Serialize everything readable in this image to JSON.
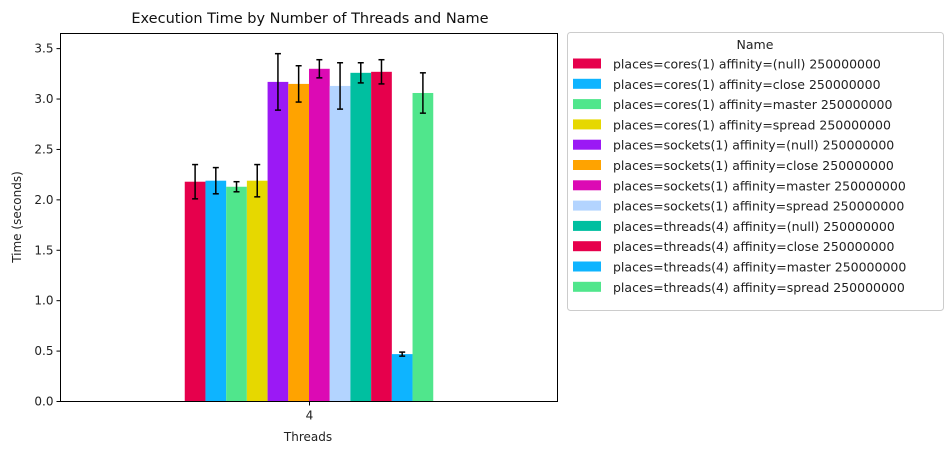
{
  "chart_data": {
    "type": "bar",
    "title": "Execution Time by Number of Threads and Name",
    "xlabel": "Threads",
    "ylabel": "Time (seconds)",
    "categories": [
      "4"
    ],
    "ylim": [
      0,
      3.65
    ],
    "yticks": [
      0.0,
      0.5,
      1.0,
      1.5,
      2.0,
      2.5,
      3.0,
      3.5
    ],
    "ytick_labels": [
      "0.0",
      "0.5",
      "1.0",
      "1.5",
      "2.0",
      "2.5",
      "3.0",
      "3.5"
    ],
    "grid": false,
    "legend": {
      "title": "Name",
      "placement": "outside-right"
    },
    "series": [
      {
        "name": "places=cores(1) affinity=(null) 250000000",
        "color": "#e6004c",
        "values": [
          2.18
        ],
        "err": [
          0.17
        ]
      },
      {
        "name": "places=cores(1) affinity=close 250000000",
        "color": "#0eb4ff",
        "values": [
          2.19
        ],
        "err": [
          0.13
        ]
      },
      {
        "name": "places=cores(1) affinity=master 250000000",
        "color": "#50e68c",
        "values": [
          2.13
        ],
        "err": [
          0.05
        ]
      },
      {
        "name": "places=cores(1) affinity=spread 250000000",
        "color": "#e6d800",
        "values": [
          2.19
        ],
        "err": [
          0.16
        ]
      },
      {
        "name": "places=sockets(1) affinity=(null) 250000000",
        "color": "#9b19f5",
        "values": [
          3.17
        ],
        "err": [
          0.28
        ]
      },
      {
        "name": "places=sockets(1) affinity=close 250000000",
        "color": "#ffa300",
        "values": [
          3.15
        ],
        "err": [
          0.18
        ]
      },
      {
        "name": "places=sockets(1) affinity=master 250000000",
        "color": "#dc0ab4",
        "values": [
          3.3
        ],
        "err": [
          0.09
        ]
      },
      {
        "name": "places=sockets(1) affinity=spread 250000000",
        "color": "#b3d4ff",
        "values": [
          3.13
        ],
        "err": [
          0.23
        ]
      },
      {
        "name": "places=threads(4) affinity=(null) 250000000",
        "color": "#00bfa0",
        "values": [
          3.26
        ],
        "err": [
          0.1
        ]
      },
      {
        "name": "places=threads(4) affinity=close 250000000",
        "color": "#e6004c",
        "values": [
          3.27
        ],
        "err": [
          0.12
        ]
      },
      {
        "name": "places=threads(4) affinity=master 250000000",
        "color": "#0eb4ff",
        "values": [
          0.47
        ],
        "err": [
          0.02
        ]
      },
      {
        "name": "places=threads(4) affinity=spread 250000000",
        "color": "#50e68c",
        "values": [
          3.06
        ],
        "err": [
          0.2
        ]
      }
    ]
  }
}
